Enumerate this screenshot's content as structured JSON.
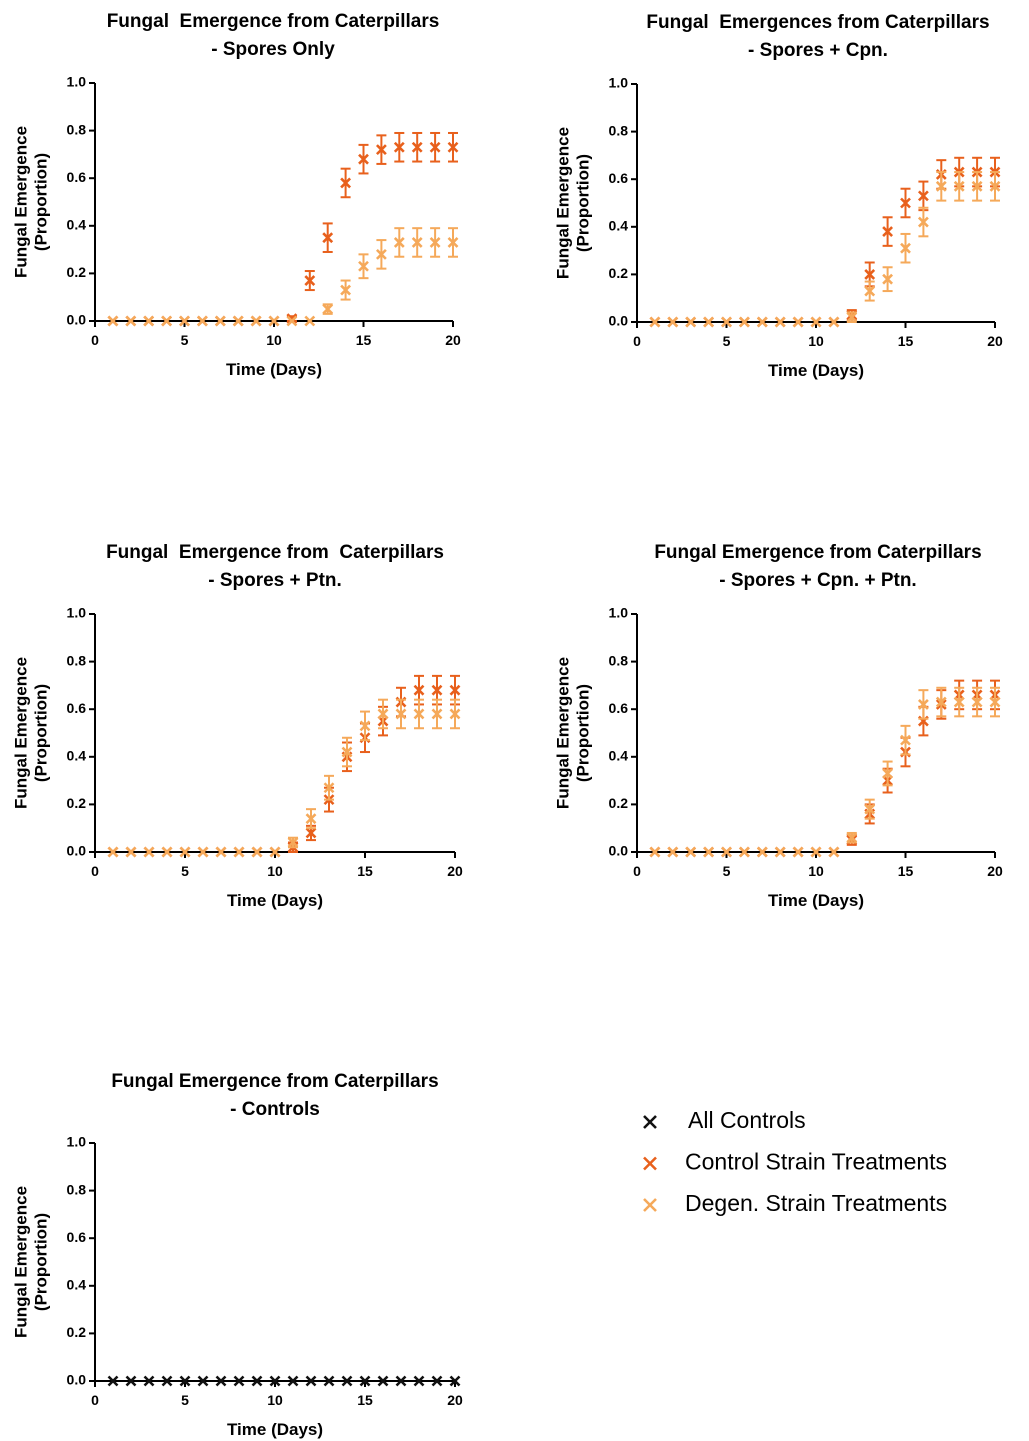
{
  "chart_data": [
    {
      "type": "scatter",
      "title": [
        "Fungal  Emergence from Caterpillars",
        "- Spores Only"
      ],
      "xlabel": "Time (Days)",
      "ylabel": [
        "Fungal Emergence",
        "(Proportion)"
      ],
      "x": [
        1,
        2,
        3,
        4,
        5,
        6,
        7,
        8,
        9,
        10,
        11,
        12,
        13,
        14,
        15,
        16,
        17,
        18,
        19,
        20
      ],
      "series": [
        {
          "color": "#e8601c",
          "values": [
            0,
            0,
            0,
            0,
            0,
            0,
            0,
            0,
            0,
            0,
            0.01,
            0.17,
            0.35,
            0.58,
            0.68,
            0.72,
            0.73,
            0.73,
            0.73,
            0.73
          ],
          "errors": [
            0,
            0,
            0,
            0,
            0,
            0,
            0,
            0,
            0,
            0,
            0.01,
            0.04,
            0.06,
            0.06,
            0.06,
            0.06,
            0.06,
            0.06,
            0.06,
            0.06
          ]
        },
        {
          "color": "#f5a95a",
          "values": [
            0,
            0,
            0,
            0,
            0,
            0,
            0,
            0,
            0,
            0,
            0,
            0,
            0.05,
            0.13,
            0.23,
            0.28,
            0.33,
            0.33,
            0.33,
            0.33
          ],
          "errors": [
            0,
            0,
            0,
            0,
            0,
            0,
            0,
            0,
            0,
            0,
            0,
            0,
            0.02,
            0.04,
            0.05,
            0.06,
            0.06,
            0.06,
            0.06,
            0.06
          ]
        }
      ],
      "xlim": [
        0,
        20
      ],
      "xticks": [
        0,
        5,
        10,
        15,
        20
      ],
      "ylim": [
        0,
        1
      ],
      "yticks": [
        {
          "value": 0,
          "label": "0.0"
        },
        0.2,
        0.4,
        0.6,
        0.8,
        {
          "value": 1,
          "label": "1.0"
        }
      ]
    },
    {
      "type": "scatter",
      "title": [
        "Fungal  Emergences from Caterpillars",
        "- Spores + Cpn."
      ],
      "xlabel": "Time (Days)",
      "ylabel": [
        "Fungal Emergence",
        "(Proportion)"
      ],
      "x": [
        1,
        2,
        3,
        4,
        5,
        6,
        7,
        8,
        9,
        10,
        11,
        12,
        13,
        14,
        15,
        16,
        17,
        18,
        19,
        20
      ],
      "series": [
        {
          "color": "#e8601c",
          "values": [
            0,
            0,
            0,
            0,
            0,
            0,
            0,
            0,
            0,
            0,
            0,
            0.03,
            0.2,
            0.38,
            0.5,
            0.53,
            0.62,
            0.63,
            0.63,
            0.63
          ],
          "errors": [
            0,
            0,
            0,
            0,
            0,
            0,
            0,
            0,
            0,
            0,
            0,
            0.02,
            0.05,
            0.06,
            0.06,
            0.06,
            0.06,
            0.06,
            0.06,
            0.06
          ]
        },
        {
          "color": "#f5a95a",
          "values": [
            0,
            0,
            0,
            0,
            0,
            0,
            0,
            0,
            0,
            0,
            0,
            0.02,
            0.13,
            0.18,
            0.31,
            0.42,
            0.57,
            0.57,
            0.57,
            0.57
          ],
          "errors": [
            0,
            0,
            0,
            0,
            0,
            0,
            0,
            0,
            0,
            0,
            0,
            0.02,
            0.04,
            0.05,
            0.06,
            0.06,
            0.06,
            0.06,
            0.06,
            0.06
          ]
        }
      ],
      "xlim": [
        0,
        20
      ],
      "xticks": [
        0,
        5,
        10,
        15,
        20
      ],
      "ylim": [
        0,
        1
      ],
      "yticks": [
        {
          "value": 0,
          "label": "0.0"
        },
        0.2,
        0.4,
        0.6,
        0.8,
        {
          "value": 1,
          "label": "1.0"
        }
      ]
    },
    {
      "type": "scatter",
      "title": [
        "Fungal  Emergence from  Caterpillars",
        "- Spores + Ptn."
      ],
      "xlabel": "Time (Days)",
      "ylabel": [
        "Fungal Emergence",
        "(Proportion)"
      ],
      "x": [
        1,
        2,
        3,
        4,
        5,
        6,
        7,
        8,
        9,
        10,
        11,
        12,
        13,
        14,
        15,
        16,
        17,
        18,
        19,
        20
      ],
      "series": [
        {
          "color": "#e8601c",
          "values": [
            0,
            0,
            0,
            0,
            0,
            0,
            0,
            0,
            0,
            0,
            0.02,
            0.08,
            0.22,
            0.4,
            0.48,
            0.55,
            0.63,
            0.68,
            0.68,
            0.68
          ],
          "errors": [
            0,
            0,
            0,
            0,
            0,
            0,
            0,
            0,
            0,
            0,
            0.02,
            0.03,
            0.05,
            0.06,
            0.06,
            0.06,
            0.06,
            0.06,
            0.06,
            0.06
          ]
        },
        {
          "color": "#f5a95a",
          "values": [
            0,
            0,
            0,
            0,
            0,
            0,
            0,
            0,
            0,
            0,
            0.04,
            0.14,
            0.27,
            0.42,
            0.53,
            0.58,
            0.58,
            0.58,
            0.58,
            0.58
          ],
          "errors": [
            0,
            0,
            0,
            0,
            0,
            0,
            0,
            0,
            0,
            0,
            0.02,
            0.04,
            0.05,
            0.06,
            0.06,
            0.06,
            0.06,
            0.06,
            0.06,
            0.06
          ]
        }
      ],
      "xlim": [
        0,
        20
      ],
      "xticks": [
        0,
        5,
        10,
        15,
        20
      ],
      "ylim": [
        0,
        1
      ],
      "yticks": [
        {
          "value": 0,
          "label": "0.0"
        },
        0.2,
        0.4,
        0.6,
        0.8,
        {
          "value": 1,
          "label": "1.0"
        }
      ]
    },
    {
      "type": "scatter",
      "title": [
        "Fungal Emergence from Caterpillars",
        "- Spores + Cpn. + Ptn."
      ],
      "xlabel": "Time (Days)",
      "ylabel": [
        "Fungal Emergence",
        "(Proportion)"
      ],
      "x": [
        1,
        2,
        3,
        4,
        5,
        6,
        7,
        8,
        9,
        10,
        11,
        12,
        13,
        14,
        15,
        16,
        17,
        18,
        19,
        20
      ],
      "series": [
        {
          "color": "#e8601c",
          "values": [
            0,
            0,
            0,
            0,
            0,
            0,
            0,
            0,
            0,
            0,
            0,
            0.05,
            0.16,
            0.3,
            0.42,
            0.55,
            0.62,
            0.66,
            0.66,
            0.66
          ],
          "errors": [
            0,
            0,
            0,
            0,
            0,
            0,
            0,
            0,
            0,
            0,
            0,
            0.02,
            0.04,
            0.05,
            0.06,
            0.06,
            0.06,
            0.06,
            0.06,
            0.06
          ]
        },
        {
          "color": "#f5a95a",
          "values": [
            0,
            0,
            0,
            0,
            0,
            0,
            0,
            0,
            0,
            0,
            0,
            0.06,
            0.18,
            0.33,
            0.47,
            0.62,
            0.63,
            0.63,
            0.63,
            0.63
          ],
          "errors": [
            0,
            0,
            0,
            0,
            0,
            0,
            0,
            0,
            0,
            0,
            0,
            0.02,
            0.04,
            0.05,
            0.06,
            0.06,
            0.06,
            0.06,
            0.06,
            0.06
          ]
        }
      ],
      "xlim": [
        0,
        20
      ],
      "xticks": [
        0,
        5,
        10,
        15,
        20
      ],
      "ylim": [
        0,
        1
      ],
      "yticks": [
        {
          "value": 0,
          "label": "0.0"
        },
        0.2,
        0.4,
        0.6,
        0.8,
        {
          "value": 1,
          "label": "1.0"
        }
      ]
    },
    {
      "type": "scatter",
      "title": [
        "Fungal Emergence from Caterpillars",
        "- Controls"
      ],
      "xlabel": "Time (Days)",
      "ylabel": [
        "Fungal Emergence",
        "(Proportion)"
      ],
      "x": [
        1,
        2,
        3,
        4,
        5,
        6,
        7,
        8,
        9,
        10,
        11,
        12,
        13,
        14,
        15,
        16,
        17,
        18,
        19,
        20
      ],
      "series": [
        {
          "color": "#111111",
          "values": [
            0,
            0,
            0,
            0,
            0,
            0,
            0,
            0,
            0,
            0,
            0,
            0,
            0,
            0,
            0,
            0,
            0,
            0,
            0,
            0
          ],
          "errors": [
            0,
            0,
            0,
            0,
            0,
            0,
            0,
            0,
            0,
            0,
            0,
            0,
            0,
            0,
            0,
            0,
            0,
            0,
            0,
            0
          ]
        }
      ],
      "xlim": [
        0,
        20
      ],
      "xticks": [
        0,
        5,
        10,
        15,
        20
      ],
      "ylim": [
        0,
        1
      ],
      "yticks": [
        {
          "value": 0,
          "label": "0.0"
        },
        0.2,
        0.4,
        0.6,
        0.8,
        {
          "value": 1,
          "label": "1.0"
        }
      ]
    }
  ],
  "legend": [
    {
      "name": "All Controls",
      "color": "#111111"
    },
    {
      "name": "Control Strain Treatments",
      "color": "#e8601c"
    },
    {
      "name": "Degen. Strain Treatments",
      "color": "#f5a95a"
    }
  ]
}
